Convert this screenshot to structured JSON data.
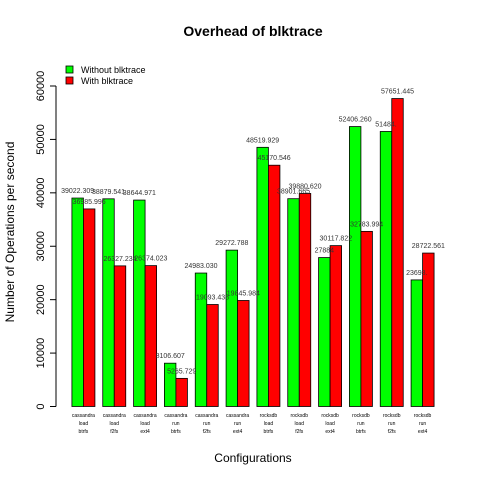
{
  "chart_data": {
    "type": "bar",
    "title": "Overhead of blktrace",
    "xlabel": "Configurations",
    "ylabel": "Number of Operations per second",
    "ylim": [
      0,
      60000
    ],
    "yticks": [
      0,
      10000,
      20000,
      30000,
      40000,
      50000,
      60000
    ],
    "grid": false,
    "legend_position": "top-left",
    "categories": [
      [
        "cassandra",
        "load",
        "btrfs"
      ],
      [
        "cassandra",
        "load",
        "f2fs"
      ],
      [
        "cassandra",
        "load",
        "ext4"
      ],
      [
        "cassandra",
        "run",
        "btrfs"
      ],
      [
        "cassandra",
        "run",
        "f2fs"
      ],
      [
        "cassandra",
        "run",
        "ext4"
      ],
      [
        "rocksdb",
        "load",
        "btrfs"
      ],
      [
        "rocksdb",
        "load",
        "f2fs"
      ],
      [
        "rocksdb",
        "load",
        "ext4"
      ],
      [
        "rocksdb",
        "run",
        "btrfs"
      ],
      [
        "rocksdb",
        "run",
        "f2fs"
      ],
      [
        "rocksdb",
        "run",
        "ext4"
      ]
    ],
    "series": [
      {
        "name": "Without blktrace",
        "color": "#00ff00",
        "values": [
          39022.309,
          38879.541,
          38644.971,
          8106.607,
          24983.03,
          29272.788,
          48519.929,
          38901.665,
          27884.0,
          52406.26,
          51484.0,
          23698.0
        ],
        "labels": [
          "39022.309",
          "38879.541",
          "38644.971",
          "8106.607",
          "24983.030",
          "29272.788",
          "48519.929",
          "38901.665",
          "27884",
          "52406.260",
          "51484.",
          "23698."
        ]
      },
      {
        "name": "With blktrace",
        "color": "#ff0000",
        "values": [
          36985.996,
          26327.234,
          26374.023,
          5265.729,
          19093.438,
          19845.984,
          45170.546,
          39880.62,
          30117.822,
          32783.994,
          57651.445,
          28722.561
        ],
        "labels": [
          "36985.996",
          "26327.234",
          "26374.023",
          "5265.729",
          "19093.438",
          "19845.984",
          "45170.546",
          "39880.620",
          "30117.822",
          "32783.994",
          "57651.445",
          "28722.561"
        ]
      }
    ]
  }
}
